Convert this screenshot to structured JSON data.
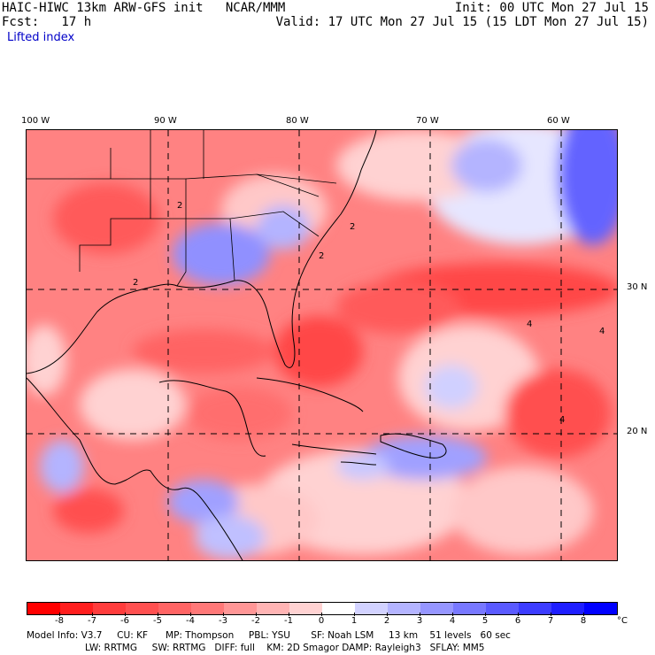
{
  "header": {
    "left_line1": "HAIC-HIWC 13km ARW-GFS init   NCAR/MMM",
    "left_line2": "Fcst:   17 h",
    "right_line1": "Init: 00 UTC Mon 27 Jul 15",
    "right_line2": "Valid: 17 UTC Mon 27 Jul 15 (15 LDT Mon 27 Jul 15)",
    "field_name": "Lifted index"
  },
  "map": {
    "longitude_labels": [
      "100 W",
      "90 W",
      "80 W",
      "70 W",
      "60 W"
    ],
    "latitude_labels": [
      "30 N",
      "20 N"
    ],
    "contour_labels": [
      "2",
      "2",
      "4",
      "4",
      "4",
      "2",
      "2"
    ]
  },
  "colorbar": {
    "levels": [
      "-8",
      "-7",
      "-6",
      "-5",
      "-4",
      "-3",
      "-2",
      "-1",
      "0",
      "1",
      "2",
      "3",
      "4",
      "5",
      "6",
      "7",
      "8"
    ],
    "unit": "°C",
    "colors": [
      "#ff0000",
      "#ff1e1e",
      "#ff3c3c",
      "#ff5050",
      "#ff6464",
      "#ff7878",
      "#ff9696",
      "#ffb4b4",
      "#ffd2d2",
      "#ffffff",
      "#d2d2ff",
      "#b4b4ff",
      "#9696ff",
      "#7878ff",
      "#5a5aff",
      "#3c3cff",
      "#1e1eff",
      "#0000ff"
    ]
  },
  "footer": {
    "line1": "Model Info: V3.7     CU: KF      MP: Thompson     PBL: YSU       SF: Noah LSM     13 km    51 levels   60 sec",
    "line2": "LW: RRTMG     SW: RRTMG   DIFF: full    KM: 2D Smagor DAMP: Rayleigh3   SFLAY: MM5"
  }
}
